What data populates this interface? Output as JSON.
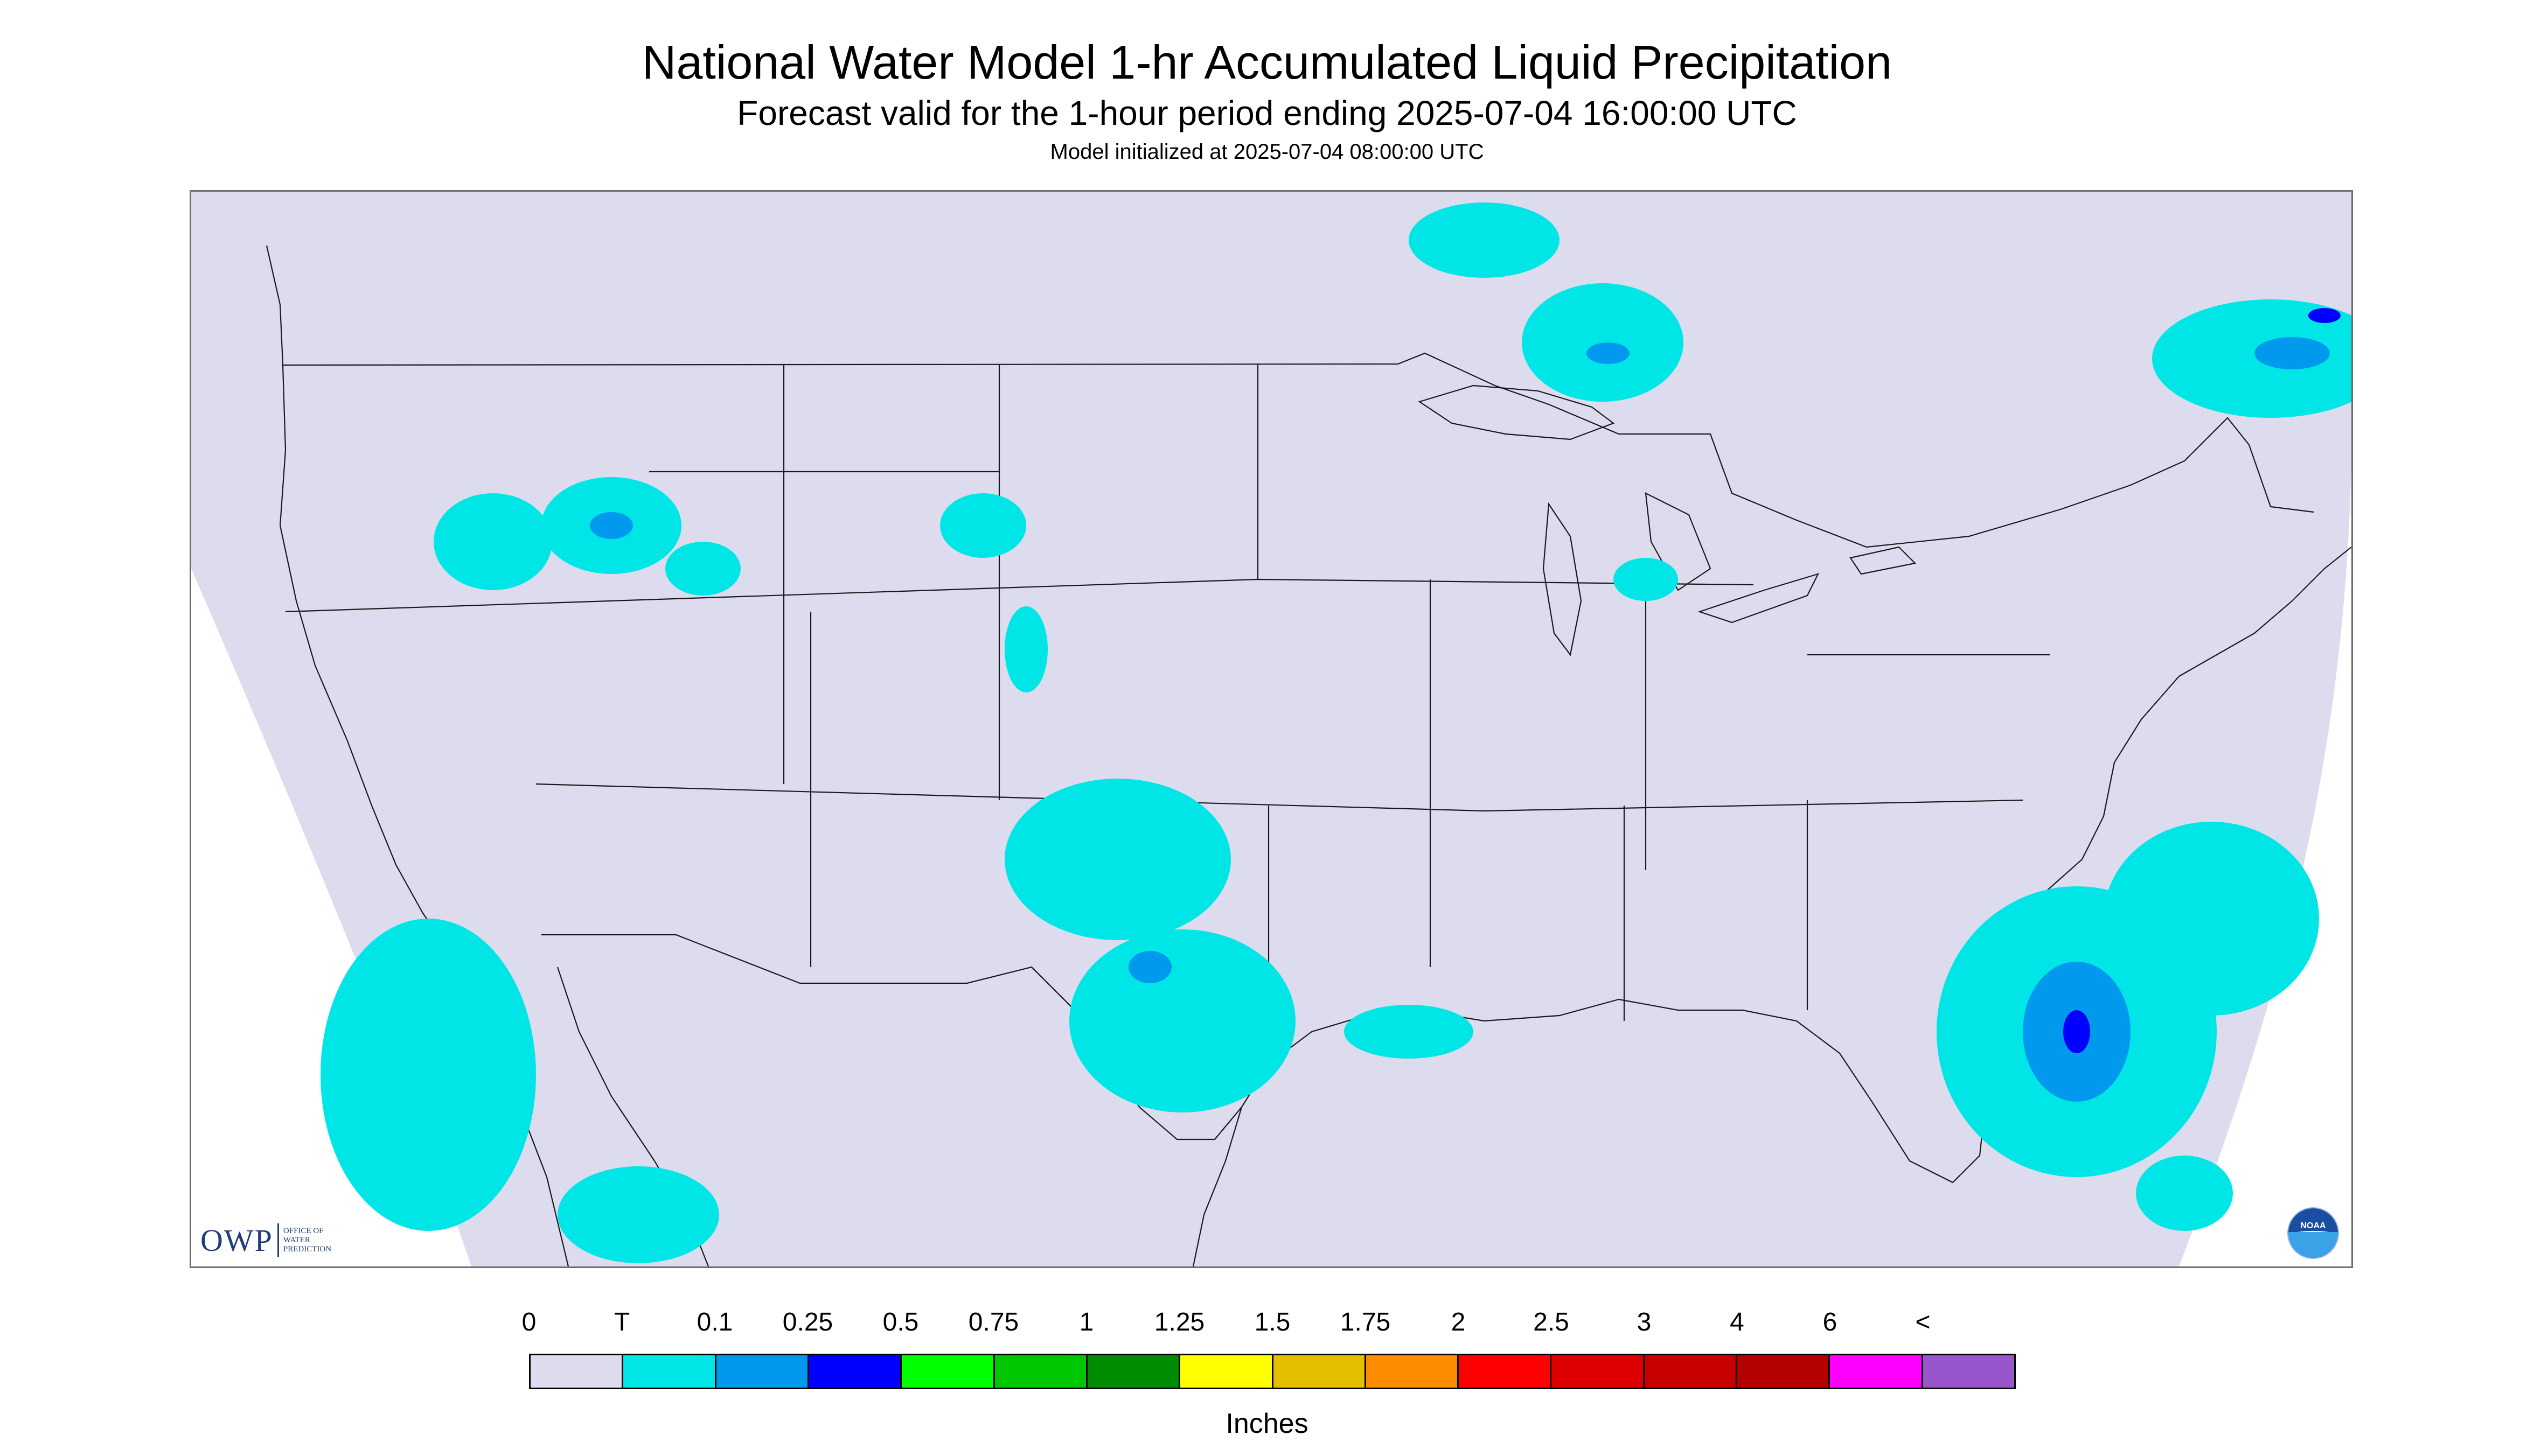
{
  "header": {
    "title": "National Water Model 1-hr Accumulated Liquid Precipitation",
    "subtitle": "Forecast valid for the 1-hour period ending 2025-07-04 16:00:00 UTC",
    "init": "Model initialized at 2025-07-04 08:00:00 UTC"
  },
  "logos": {
    "owp": {
      "abbr": "OWP",
      "line1": "OFFICE OF",
      "line2": "WATER",
      "line3": "PREDICTION"
    },
    "noaa": "NOAA"
  },
  "map": {
    "background_color": "#ffffff",
    "domain_color": "#dcdcee",
    "boundary_color": "#1a1a1a",
    "precip_light_color": "#00e6e6",
    "precip_mid_color": "#0099ee",
    "precip_heavy_color": "#0000ff"
  },
  "legend": {
    "labels": [
      "0",
      "T",
      "0.1",
      "0.25",
      "0.5",
      "0.75",
      "1",
      "1.25",
      "1.5",
      "1.75",
      "2",
      "2.5",
      "3",
      "4",
      "6",
      "<"
    ],
    "colors": [
      "#dcdcee",
      "#00e6e6",
      "#0099ee",
      "#0000ff",
      "#00ff00",
      "#00c800",
      "#008c00",
      "#ffff00",
      "#e6be00",
      "#ff8c00",
      "#ff0000",
      "#dc0000",
      "#c80000",
      "#b40000",
      "#ff00ff",
      "#9955cc"
    ],
    "unit": "Inches"
  }
}
